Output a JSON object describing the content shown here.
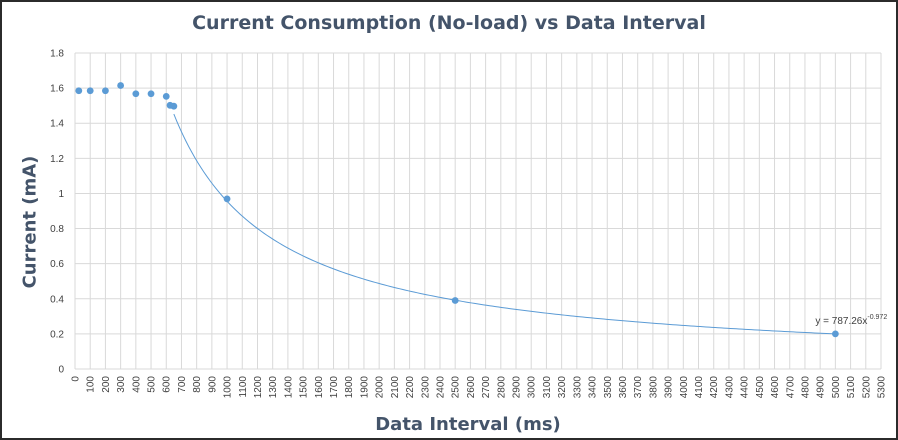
{
  "chart_data": {
    "type": "scatter",
    "title": "Current Consumption (No-load) vs Data Interval",
    "xlabel": "Data Interval (ms)",
    "ylabel": "Current (mA)",
    "xlim": [
      0,
      5300
    ],
    "ylim": [
      0,
      1.8
    ],
    "x_tick_step": 100,
    "y_ticks": [
      0,
      0.2,
      0.4,
      0.6,
      0.8,
      1,
      1.2,
      1.4,
      1.6,
      1.8
    ],
    "y_tick_labels": [
      "0",
      "0.2",
      "0.4",
      "0.6",
      "0.8",
      "1",
      "1.2",
      "1.4",
      "1.6",
      "1.8"
    ],
    "grid": true,
    "series": [
      {
        "name": "Current",
        "x": [
          25,
          100,
          200,
          300,
          400,
          500,
          600,
          625,
          650,
          1000,
          2500,
          5000
        ],
        "y": [
          1.585,
          1.585,
          1.585,
          1.615,
          1.568,
          1.568,
          1.553,
          1.502,
          1.497,
          0.969,
          0.39,
          0.2
        ]
      }
    ],
    "trendline": {
      "type": "power",
      "a": 787.26,
      "b": -0.972,
      "x_start": 650,
      "x_end": 5000,
      "label_main": "y = 787.26x",
      "label_exp": "-0.972"
    },
    "colors": {
      "series": "#5b9bd5",
      "grid": "#d9d9d9",
      "axis_text": "#404040",
      "title": "#44546a"
    }
  }
}
